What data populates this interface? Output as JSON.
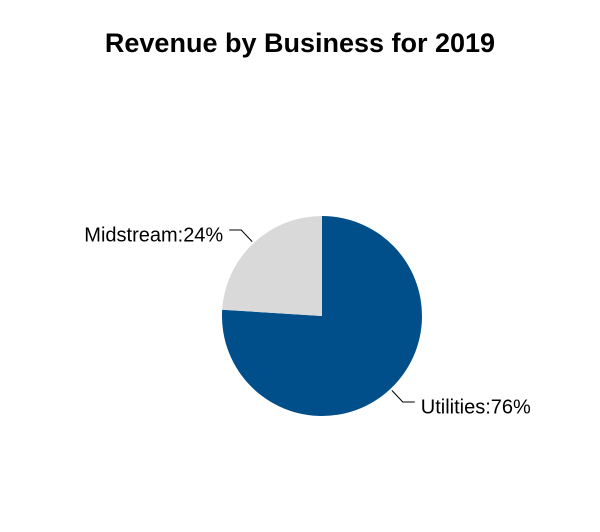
{
  "chart_data": {
    "type": "pie",
    "title": "Revenue by Business for 2019",
    "values": [
      76,
      24
    ],
    "value_labels": [
      "Utilities:76%",
      "Midstream:24%"
    ],
    "colors": [
      "#004f8a",
      "#d9d9d9"
    ]
  }
}
